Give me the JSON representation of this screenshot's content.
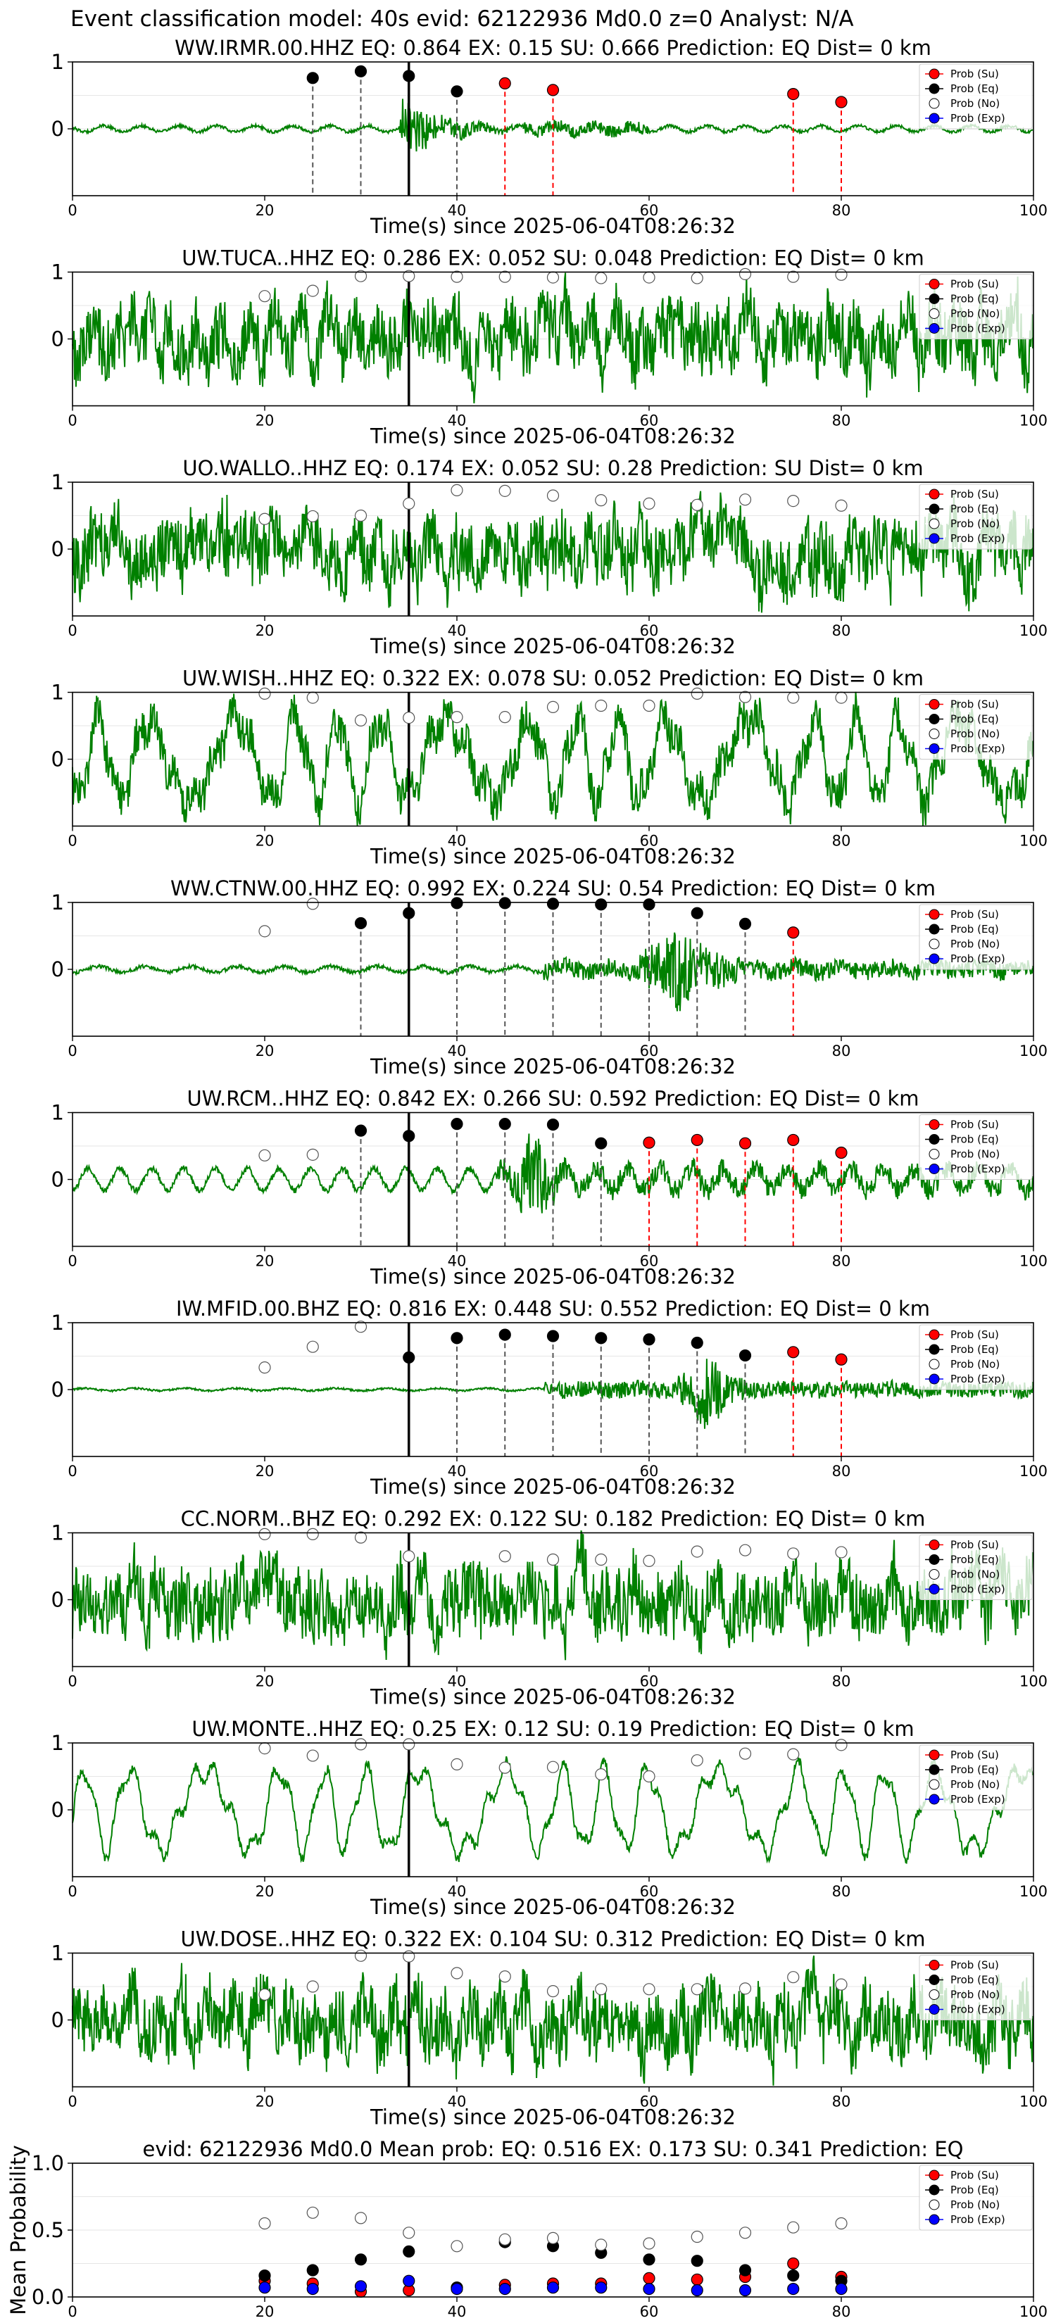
{
  "suptitle": "Event classification model: 40s evid: 62122936 Md0.0 z=0 Analyst: N/A",
  "xlabel": "Time(s) since 2025-06-04T08:26:32",
  "legend": [
    "Prob (Su)",
    "Prob (Eq)",
    "Prob (No)",
    "Prob (Exp)"
  ],
  "colors": {
    "su": "#ff0000",
    "eq": "#000000",
    "no": "#ffffff",
    "exp": "#0000ff",
    "trace": "#008000",
    "pick": "#000000"
  },
  "xticks": [
    "0",
    "20",
    "40",
    "60",
    "80",
    "100"
  ],
  "yticks_trace": [
    "1",
    "0"
  ],
  "yticks_mean": [
    "0.0",
    "0.5",
    "1.0"
  ],
  "chart_data": [
    {
      "type": "line",
      "title": "WW.IRMR.00.HHZ   EQ: 0.864  EX: 0.15  SU: 0.666   Prediction: EQ    Dist= 0 km",
      "xlim": [
        0,
        100
      ],
      "ylim": [
        -1,
        1
      ],
      "pick_time": 35,
      "waveform": "quiet_burst",
      "points": [
        {
          "t": 25,
          "p": 0.76,
          "c": "eq"
        },
        {
          "t": 30,
          "p": 0.86,
          "c": "eq"
        },
        {
          "t": 35,
          "p": 0.79,
          "c": "eq"
        },
        {
          "t": 40,
          "p": 0.56,
          "c": "eq"
        },
        {
          "t": 45,
          "p": 0.68,
          "c": "su"
        },
        {
          "t": 50,
          "p": 0.58,
          "c": "su"
        },
        {
          "t": 75,
          "p": 0.52,
          "c": "su"
        },
        {
          "t": 80,
          "p": 0.4,
          "c": "su"
        }
      ]
    },
    {
      "type": "line",
      "title": "UW.TUCA..HHZ   EQ: 0.286  EX: 0.052  SU: 0.048   Prediction: EQ    Dist= 0 km",
      "xlim": [
        0,
        100
      ],
      "ylim": [
        -1,
        1
      ],
      "pick_time": 35,
      "waveform": "noisy",
      "points": [
        {
          "t": 20,
          "p": 0.64,
          "c": "no"
        },
        {
          "t": 25,
          "p": 0.72,
          "c": "no"
        },
        {
          "t": 30,
          "p": 0.94,
          "c": "no"
        },
        {
          "t": 35,
          "p": 0.94,
          "c": "no"
        },
        {
          "t": 40,
          "p": 0.93,
          "c": "no"
        },
        {
          "t": 45,
          "p": 0.93,
          "c": "no"
        },
        {
          "t": 50,
          "p": 0.92,
          "c": "no"
        },
        {
          "t": 55,
          "p": 0.91,
          "c": "no"
        },
        {
          "t": 60,
          "p": 0.92,
          "c": "no"
        },
        {
          "t": 65,
          "p": 0.91,
          "c": "no"
        },
        {
          "t": 70,
          "p": 0.97,
          "c": "no"
        },
        {
          "t": 75,
          "p": 0.93,
          "c": "no"
        },
        {
          "t": 80,
          "p": 0.96,
          "c": "no"
        }
      ]
    },
    {
      "type": "line",
      "title": "UO.WALLO..HHZ   EQ: 0.174  EX: 0.052  SU: 0.28   Prediction: SU    Dist= 0 km",
      "xlim": [
        0,
        100
      ],
      "ylim": [
        -1,
        1
      ],
      "pick_time": 35,
      "waveform": "noisy",
      "points": [
        {
          "t": 20,
          "p": 0.45,
          "c": "no"
        },
        {
          "t": 25,
          "p": 0.49,
          "c": "no"
        },
        {
          "t": 30,
          "p": 0.5,
          "c": "no"
        },
        {
          "t": 35,
          "p": 0.68,
          "c": "no"
        },
        {
          "t": 40,
          "p": 0.88,
          "c": "no"
        },
        {
          "t": 45,
          "p": 0.87,
          "c": "no"
        },
        {
          "t": 50,
          "p": 0.8,
          "c": "no"
        },
        {
          "t": 55,
          "p": 0.73,
          "c": "no"
        },
        {
          "t": 60,
          "p": 0.68,
          "c": "no"
        },
        {
          "t": 65,
          "p": 0.66,
          "c": "no"
        },
        {
          "t": 70,
          "p": 0.74,
          "c": "no"
        },
        {
          "t": 75,
          "p": 0.72,
          "c": "no"
        },
        {
          "t": 80,
          "p": 0.65,
          "c": "no"
        }
      ]
    },
    {
      "type": "line",
      "title": "UW.WISH..HHZ   EQ: 0.322  EX: 0.078  SU: 0.052   Prediction: EQ    Dist= 0 km",
      "xlim": [
        0,
        100
      ],
      "ylim": [
        -1,
        1
      ],
      "pick_time": 35,
      "waveform": "long_period",
      "points": [
        {
          "t": 20,
          "p": 0.98,
          "c": "no"
        },
        {
          "t": 25,
          "p": 0.92,
          "c": "no"
        },
        {
          "t": 30,
          "p": 0.58,
          "c": "no"
        },
        {
          "t": 35,
          "p": 0.62,
          "c": "no"
        },
        {
          "t": 40,
          "p": 0.63,
          "c": "no"
        },
        {
          "t": 45,
          "p": 0.63,
          "c": "no"
        },
        {
          "t": 50,
          "p": 0.78,
          "c": "no"
        },
        {
          "t": 55,
          "p": 0.8,
          "c": "no"
        },
        {
          "t": 60,
          "p": 0.8,
          "c": "no"
        },
        {
          "t": 65,
          "p": 0.98,
          "c": "no"
        },
        {
          "t": 70,
          "p": 0.93,
          "c": "no"
        },
        {
          "t": 75,
          "p": 0.92,
          "c": "no"
        },
        {
          "t": 80,
          "p": 0.92,
          "c": "no"
        }
      ]
    },
    {
      "type": "line",
      "title": "WW.CTNW.00.HHZ   EQ: 0.992  EX: 0.224  SU: 0.54   Prediction: EQ    Dist= 0 km",
      "xlim": [
        0,
        100
      ],
      "ylim": [
        -1,
        1
      ],
      "pick_time": 35,
      "waveform": "event_mid",
      "points": [
        {
          "t": 20,
          "p": 0.57,
          "c": "no"
        },
        {
          "t": 25,
          "p": 0.98,
          "c": "no"
        },
        {
          "t": 30,
          "p": 0.69,
          "c": "eq"
        },
        {
          "t": 35,
          "p": 0.84,
          "c": "eq"
        },
        {
          "t": 40,
          "p": 0.99,
          "c": "eq"
        },
        {
          "t": 45,
          "p": 0.99,
          "c": "eq"
        },
        {
          "t": 50,
          "p": 0.98,
          "c": "eq"
        },
        {
          "t": 55,
          "p": 0.97,
          "c": "eq"
        },
        {
          "t": 60,
          "p": 0.97,
          "c": "eq"
        },
        {
          "t": 65,
          "p": 0.84,
          "c": "eq"
        },
        {
          "t": 70,
          "p": 0.68,
          "c": "eq"
        },
        {
          "t": 75,
          "p": 0.55,
          "c": "su"
        }
      ]
    },
    {
      "type": "line",
      "title": "UW.RCM..HHZ   EQ: 0.842  EX: 0.266  SU: 0.592   Prediction: EQ    Dist= 0 km",
      "xlim": [
        0,
        100
      ],
      "ylim": [
        -1,
        1
      ],
      "pick_time": 35,
      "waveform": "event_early",
      "points": [
        {
          "t": 20,
          "p": 0.36,
          "c": "no"
        },
        {
          "t": 25,
          "p": 0.37,
          "c": "no"
        },
        {
          "t": 30,
          "p": 0.73,
          "c": "eq"
        },
        {
          "t": 35,
          "p": 0.65,
          "c": "eq"
        },
        {
          "t": 40,
          "p": 0.83,
          "c": "eq"
        },
        {
          "t": 45,
          "p": 0.83,
          "c": "eq"
        },
        {
          "t": 50,
          "p": 0.82,
          "c": "eq"
        },
        {
          "t": 55,
          "p": 0.54,
          "c": "eq"
        },
        {
          "t": 60,
          "p": 0.55,
          "c": "su"
        },
        {
          "t": 65,
          "p": 0.59,
          "c": "su"
        },
        {
          "t": 70,
          "p": 0.54,
          "c": "su"
        },
        {
          "t": 75,
          "p": 0.59,
          "c": "su"
        },
        {
          "t": 80,
          "p": 0.4,
          "c": "su"
        }
      ]
    },
    {
      "type": "line",
      "title": "IW.MFID.00.BHZ   EQ: 0.816  EX: 0.448  SU: 0.552   Prediction: EQ    Dist= 0 km",
      "xlim": [
        0,
        100
      ],
      "ylim": [
        -1,
        1
      ],
      "pick_time": 35,
      "waveform": "event_late",
      "points": [
        {
          "t": 20,
          "p": 0.33,
          "c": "no"
        },
        {
          "t": 25,
          "p": 0.64,
          "c": "no"
        },
        {
          "t": 30,
          "p": 0.94,
          "c": "no"
        },
        {
          "t": 35,
          "p": 0.48,
          "c": "eq"
        },
        {
          "t": 40,
          "p": 0.77,
          "c": "eq"
        },
        {
          "t": 45,
          "p": 0.82,
          "c": "eq"
        },
        {
          "t": 50,
          "p": 0.8,
          "c": "eq"
        },
        {
          "t": 55,
          "p": 0.77,
          "c": "eq"
        },
        {
          "t": 60,
          "p": 0.75,
          "c": "eq"
        },
        {
          "t": 65,
          "p": 0.7,
          "c": "eq"
        },
        {
          "t": 70,
          "p": 0.51,
          "c": "eq"
        },
        {
          "t": 75,
          "p": 0.56,
          "c": "su"
        },
        {
          "t": 80,
          "p": 0.45,
          "c": "su"
        }
      ]
    },
    {
      "type": "line",
      "title": "CC.NORM..BHZ   EQ: 0.292  EX: 0.122  SU: 0.182   Prediction: EQ    Dist= 0 km",
      "xlim": [
        0,
        100
      ],
      "ylim": [
        -1,
        1
      ],
      "pick_time": 35,
      "waveform": "noisy",
      "points": [
        {
          "t": 20,
          "p": 0.98,
          "c": "no"
        },
        {
          "t": 25,
          "p": 0.98,
          "c": "no"
        },
        {
          "t": 30,
          "p": 0.93,
          "c": "no"
        },
        {
          "t": 35,
          "p": 0.65,
          "c": "no"
        },
        {
          "t": 45,
          "p": 0.65,
          "c": "no"
        },
        {
          "t": 50,
          "p": 0.6,
          "c": "no"
        },
        {
          "t": 55,
          "p": 0.6,
          "c": "no"
        },
        {
          "t": 60,
          "p": 0.58,
          "c": "no"
        },
        {
          "t": 65,
          "p": 0.72,
          "c": "no"
        },
        {
          "t": 70,
          "p": 0.74,
          "c": "no"
        },
        {
          "t": 75,
          "p": 0.69,
          "c": "no"
        },
        {
          "t": 80,
          "p": 0.71,
          "c": "no"
        }
      ]
    },
    {
      "type": "line",
      "title": "UW.MONTE..HHZ   EQ: 0.25  EX: 0.12  SU: 0.19   Prediction: EQ    Dist= 0 km",
      "xlim": [
        0,
        100
      ],
      "ylim": [
        -1,
        1
      ],
      "pick_time": 35,
      "waveform": "long_period",
      "points": [
        {
          "t": 20,
          "p": 0.92,
          "c": "no"
        },
        {
          "t": 25,
          "p": 0.81,
          "c": "no"
        },
        {
          "t": 30,
          "p": 0.98,
          "c": "no"
        },
        {
          "t": 35,
          "p": 0.98,
          "c": "no"
        },
        {
          "t": 40,
          "p": 0.68,
          "c": "no"
        },
        {
          "t": 45,
          "p": 0.63,
          "c": "no"
        },
        {
          "t": 50,
          "p": 0.64,
          "c": "no"
        },
        {
          "t": 55,
          "p": 0.53,
          "c": "no"
        },
        {
          "t": 60,
          "p": 0.5,
          "c": "no"
        },
        {
          "t": 65,
          "p": 0.74,
          "c": "no"
        },
        {
          "t": 70,
          "p": 0.84,
          "c": "no"
        },
        {
          "t": 75,
          "p": 0.83,
          "c": "no"
        },
        {
          "t": 80,
          "p": 0.97,
          "c": "no"
        }
      ]
    },
    {
      "type": "line",
      "title": "UW.DOSE..HHZ   EQ: 0.322  EX: 0.104  SU: 0.312   Prediction: EQ    Dist= 0 km",
      "xlim": [
        0,
        100
      ],
      "ylim": [
        -1,
        1
      ],
      "pick_time": 35,
      "waveform": "noisy",
      "points": [
        {
          "t": 20,
          "p": 0.38,
          "c": "no"
        },
        {
          "t": 25,
          "p": 0.5,
          "c": "no"
        },
        {
          "t": 30,
          "p": 0.96,
          "c": "no"
        },
        {
          "t": 35,
          "p": 0.95,
          "c": "no"
        },
        {
          "t": 40,
          "p": 0.7,
          "c": "no"
        },
        {
          "t": 45,
          "p": 0.65,
          "c": "no"
        },
        {
          "t": 50,
          "p": 0.43,
          "c": "no"
        },
        {
          "t": 55,
          "p": 0.46,
          "c": "no"
        },
        {
          "t": 60,
          "p": 0.46,
          "c": "no"
        },
        {
          "t": 65,
          "p": 0.46,
          "c": "no"
        },
        {
          "t": 70,
          "p": 0.47,
          "c": "no"
        },
        {
          "t": 75,
          "p": 0.64,
          "c": "no"
        },
        {
          "t": 80,
          "p": 0.53,
          "c": "no"
        }
      ]
    },
    {
      "type": "scatter",
      "title": "evid: 62122936  Md0.0   Mean prob:   EQ: 0.516  EX: 0.173  SU: 0.341   Prediction: EQ",
      "ylabel": "Mean Probability",
      "xlim": [
        0,
        100
      ],
      "ylim": [
        0,
        1
      ],
      "x": [
        20,
        25,
        30,
        35,
        40,
        45,
        50,
        55,
        60,
        65,
        70,
        75,
        80
      ],
      "series": [
        {
          "name": "Prob (Su)",
          "key": "su",
          "values": [
            0.12,
            0.1,
            0.04,
            0.05,
            0.07,
            0.09,
            0.1,
            0.1,
            0.14,
            0.13,
            0.15,
            0.25,
            0.15
          ]
        },
        {
          "name": "Prob (Eq)",
          "key": "eq",
          "values": [
            0.16,
            0.2,
            0.28,
            0.34,
            0.07,
            0.41,
            0.38,
            0.33,
            0.28,
            0.27,
            0.2,
            0.16,
            0.12
          ]
        },
        {
          "name": "Prob (No)",
          "key": "no",
          "values": [
            0.55,
            0.63,
            0.59,
            0.48,
            0.38,
            0.43,
            0.44,
            0.39,
            0.4,
            0.45,
            0.48,
            0.52,
            0.55
          ]
        },
        {
          "name": "Prob (Exp)",
          "key": "exp",
          "values": [
            0.07,
            0.06,
            0.08,
            0.12,
            0.06,
            0.06,
            0.07,
            0.07,
            0.06,
            0.05,
            0.05,
            0.06,
            0.06
          ]
        }
      ]
    }
  ]
}
